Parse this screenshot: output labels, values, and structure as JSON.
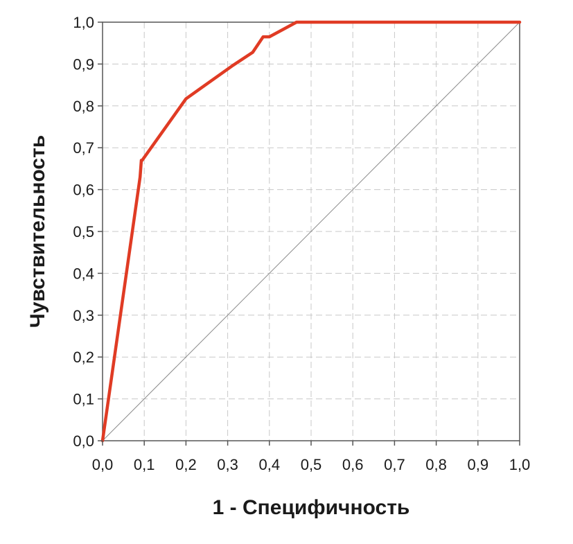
{
  "chart_data": {
    "type": "line",
    "title": "",
    "xlabel": "1 - Специфичность",
    "ylabel": "Чувствительность",
    "xlim": [
      0,
      1
    ],
    "ylim": [
      0,
      1
    ],
    "grid": true,
    "x_ticks": [
      "0,0",
      "0,1",
      "0,2",
      "0,3",
      "0,4",
      "0,5",
      "0,6",
      "0,7",
      "0,8",
      "0,9",
      "1,0"
    ],
    "y_ticks": [
      "0,0",
      "0,1",
      "0,2",
      "0,3",
      "0,4",
      "0,5",
      "0,6",
      "0,7",
      "0,8",
      "0,9",
      "1,0"
    ],
    "series": [
      {
        "color": "#e03b24",
        "x": [
          0.0,
          0.09,
          0.093,
          0.095,
          0.2,
          0.31,
          0.36,
          0.385,
          0.4,
          0.465,
          1.0
        ],
        "y": [
          0.0,
          0.63,
          0.67,
          0.67,
          0.817,
          0.895,
          0.928,
          0.965,
          0.965,
          1.0,
          1.0
        ]
      },
      {
        "color": "#8a8a8a",
        "x": [
          0.0,
          1.0
        ],
        "y": [
          0.0,
          1.0
        ]
      }
    ]
  }
}
